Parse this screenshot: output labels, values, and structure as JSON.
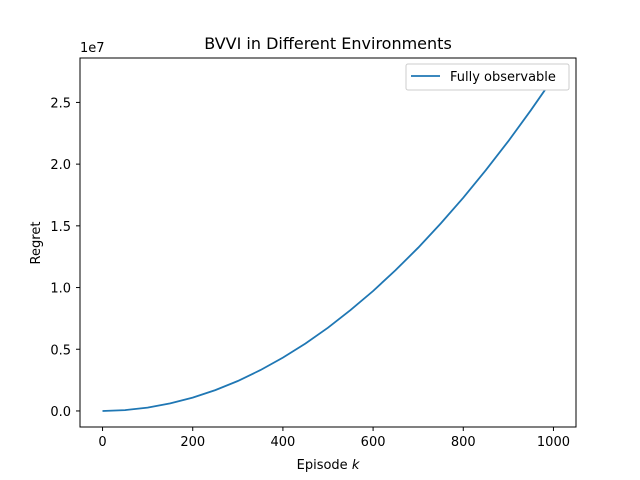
{
  "chart_data": {
    "type": "line",
    "title": "BVVI in Different Environments",
    "xlabel": "Episode",
    "xlabel_var": "k",
    "ylabel": "Regret",
    "y_multiplier_label": "1e7",
    "xlim": [
      -50,
      1050
    ],
    "ylim": [
      -1300000,
      28600000
    ],
    "x_ticks": [
      0,
      200,
      400,
      600,
      800,
      1000
    ],
    "x_tick_labels": [
      "0",
      "200",
      "400",
      "600",
      "800",
      "1000"
    ],
    "y_ticks": [
      0,
      5000000,
      10000000,
      15000000,
      20000000,
      25000000
    ],
    "y_tick_labels": [
      "0.0",
      "0.5",
      "1.0",
      "1.5",
      "2.0",
      "2.5"
    ],
    "grid": false,
    "legend_position": "upper right",
    "series": [
      {
        "name": "Fully observable",
        "color": "#1f77b4",
        "x": [
          0,
          50,
          100,
          150,
          200,
          250,
          300,
          350,
          400,
          450,
          500,
          550,
          600,
          650,
          700,
          750,
          800,
          850,
          900,
          950,
          1000
        ],
        "y": [
          0,
          67000,
          270000,
          610000,
          1080000,
          1690000,
          2430000,
          3310000,
          4320000,
          5470000,
          6750000,
          8170000,
          9720000,
          11410000,
          13230000,
          15190000,
          17280000,
          19510000,
          21870000,
          24370000,
          27000000
        ]
      }
    ]
  }
}
